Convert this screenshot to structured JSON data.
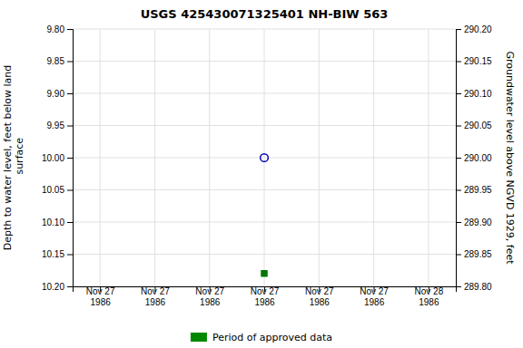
{
  "chart_data": {
    "type": "scatter",
    "title": "USGS 425430071325401 NH-BIW  563",
    "y_label": "Depth to water level, feet below land\n surface",
    "y2_label": "Groundwater level above NGVD 1929, feet",
    "categories": [
      "Nov 27\n1986",
      "Nov 27\n1986",
      "Nov 27\n1986",
      "Nov 27\n1986",
      "Nov 27\n1986",
      "Nov 27\n1986",
      "Nov 28\n1986"
    ],
    "series": [
      {
        "type": "scatter",
        "marker": "circle-open",
        "color": "#0000bb",
        "values": [
          null,
          null,
          null,
          10.0,
          null,
          null,
          null
        ]
      },
      {
        "type": "scatter",
        "marker": "square",
        "color": "#007700",
        "values": [
          null,
          null,
          null,
          10.18,
          null,
          null,
          null
        ]
      },
      {
        "type": "area",
        "name": "Period of approved data",
        "color": "#008800",
        "values": [
          null,
          null,
          null,
          null,
          null,
          null,
          null
        ]
      }
    ],
    "ylim": [
      10.2,
      9.8
    ],
    "yticks": [
      {
        "value": 9.8,
        "label": "9.80"
      },
      9.85,
      {
        "value": 9.9,
        "label": "9.90"
      },
      9.95,
      {
        "value": 10.0,
        "label": "10.00"
      },
      10.05,
      {
        "value": 10.1,
        "label": "10.10"
      },
      10.15,
      {
        "value": 10.2,
        "label": "10.20"
      }
    ],
    "y2lim": [
      289.8,
      290.2
    ],
    "y2ticks": [
      {
        "value": 290.2,
        "label": "290.20"
      },
      290.15,
      {
        "value": 290.1,
        "label": "290.10"
      },
      290.05,
      {
        "value": 290.0,
        "label": "290.00"
      },
      289.95,
      {
        "value": 289.9,
        "label": "289.90"
      },
      289.85,
      {
        "value": 289.8,
        "label": "289.80"
      }
    ],
    "grid": true,
    "legend": "bottom"
  }
}
